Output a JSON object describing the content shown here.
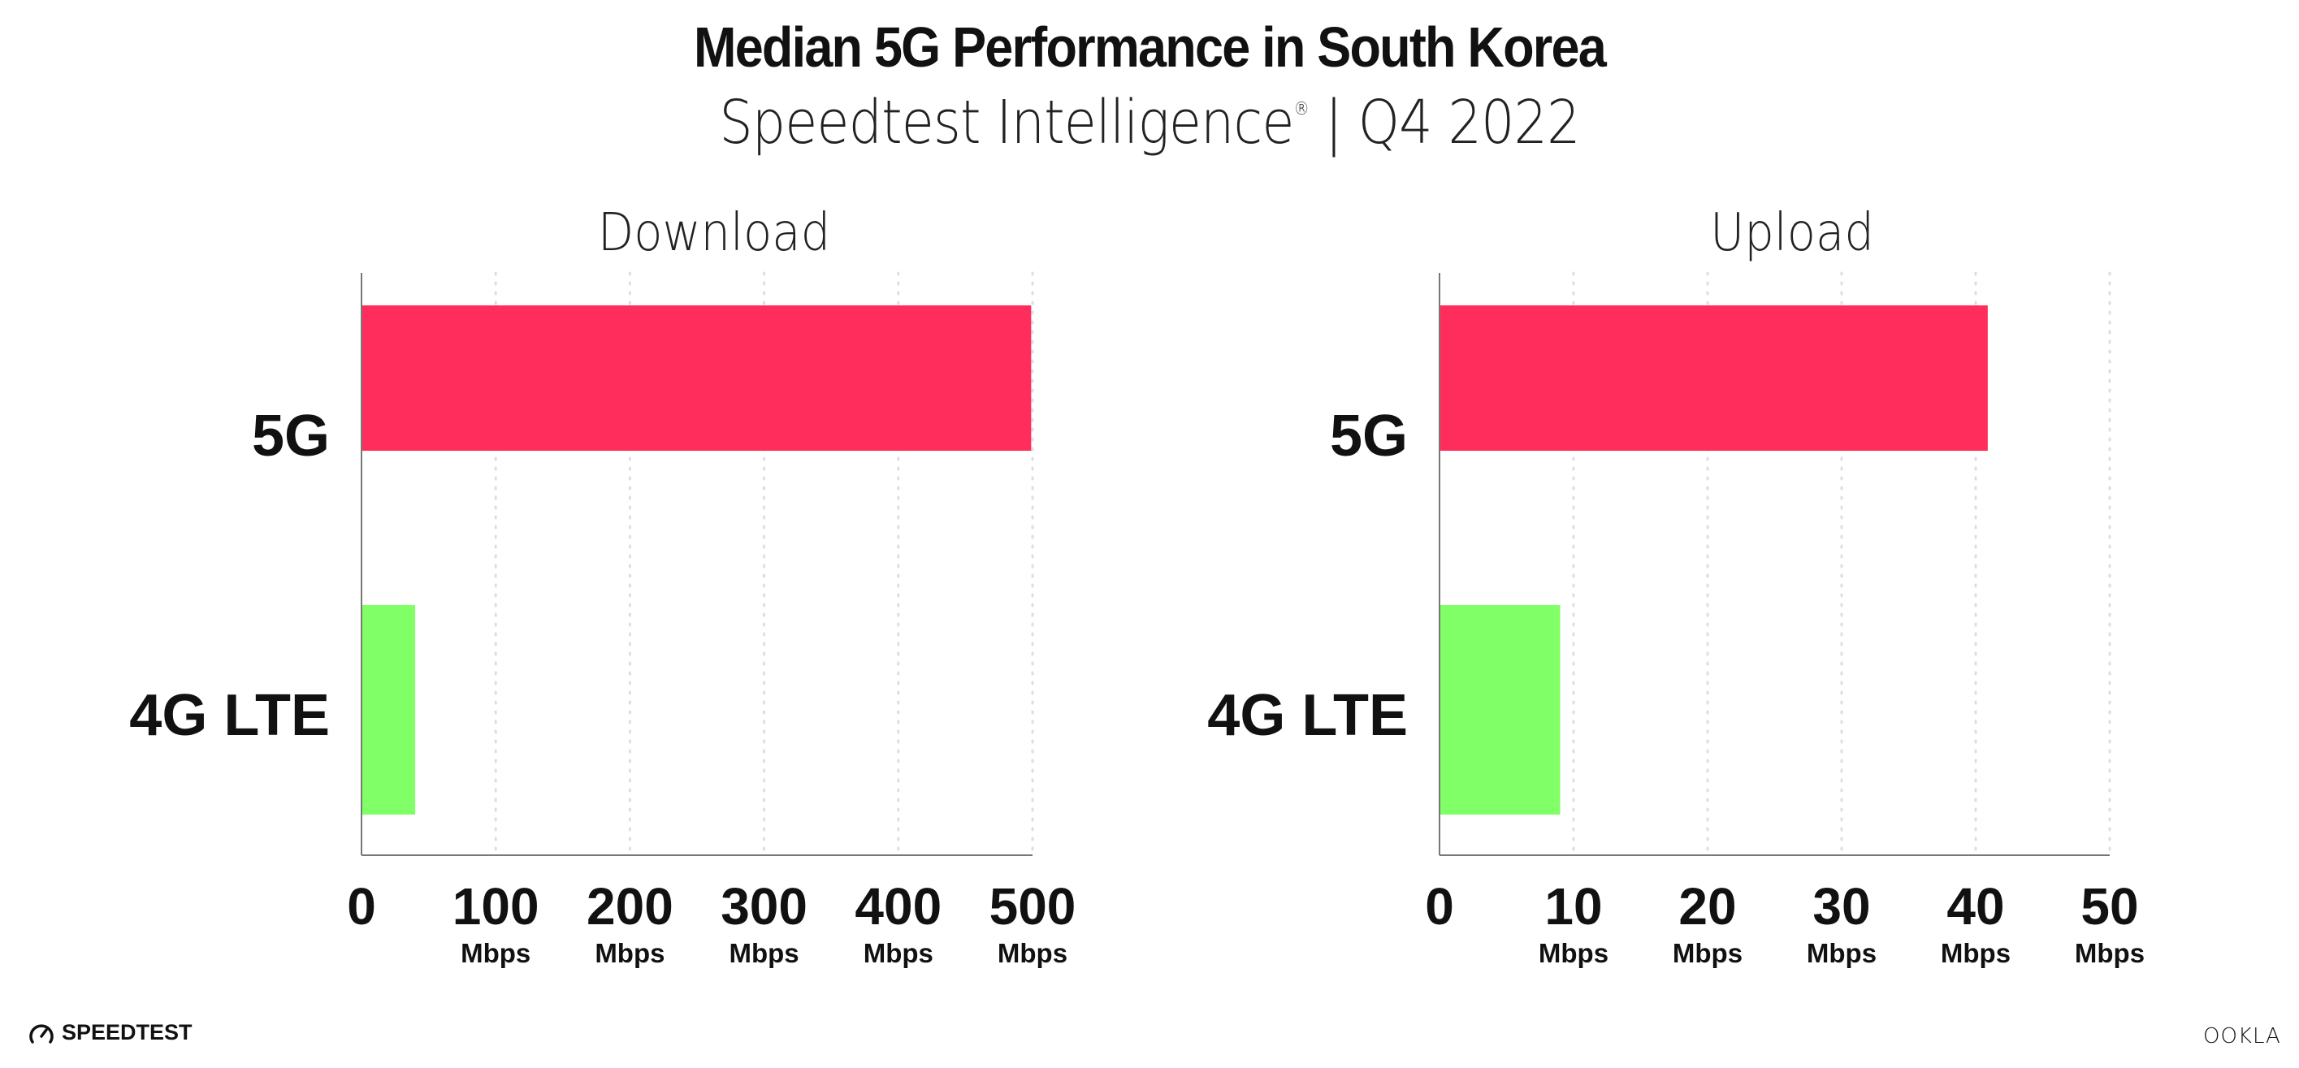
{
  "header": {
    "title": "Median 5G Performance in South Korea",
    "subtitle_source": "Speedtest Intelligence",
    "subtitle_mark": "®",
    "subtitle_period": "| Q4 2022"
  },
  "footer": {
    "left_logo": "SPEEDTEST",
    "right_logo": "OOKLA"
  },
  "colors": {
    "5G": "#ff2d5c",
    "4G LTE": "#80ff66",
    "grid": "#dcdde8",
    "axis": "#777777"
  },
  "chart_data": [
    {
      "type": "bar",
      "orientation": "horizontal",
      "title": "Download",
      "categories": [
        "5G",
        "4G LTE"
      ],
      "values": [
        499,
        40
      ],
      "xlim": [
        0,
        500
      ],
      "ticks": [
        "0",
        "100",
        "200",
        "300",
        "400",
        "500"
      ],
      "tick_unit": "Mbps",
      "grid": "vertical dotted"
    },
    {
      "type": "bar",
      "orientation": "horizontal",
      "title": "Upload",
      "categories": [
        "5G",
        "4G LTE"
      ],
      "values": [
        40.9,
        9.0
      ],
      "xlim": [
        0,
        50
      ],
      "ticks": [
        "0",
        "10",
        "20",
        "30",
        "40",
        "50"
      ],
      "tick_unit": "Mbps",
      "grid": "vertical dotted"
    }
  ]
}
